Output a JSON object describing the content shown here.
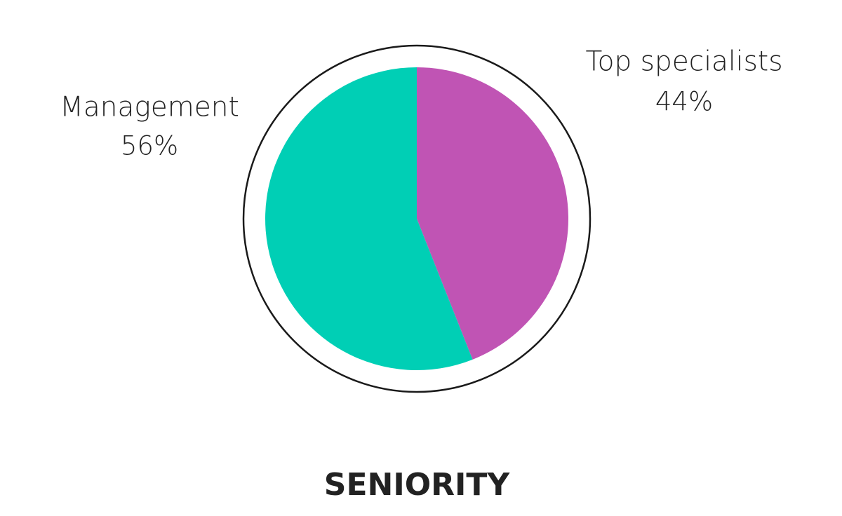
{
  "chart_data": {
    "type": "pie",
    "title": "SENIORITY",
    "categories": [
      "Top specialists",
      "Management"
    ],
    "values": [
      44,
      56
    ],
    "value_labels": [
      "44%",
      "56%"
    ],
    "colors": [
      "#c054b4",
      "#00cfb5"
    ]
  }
}
